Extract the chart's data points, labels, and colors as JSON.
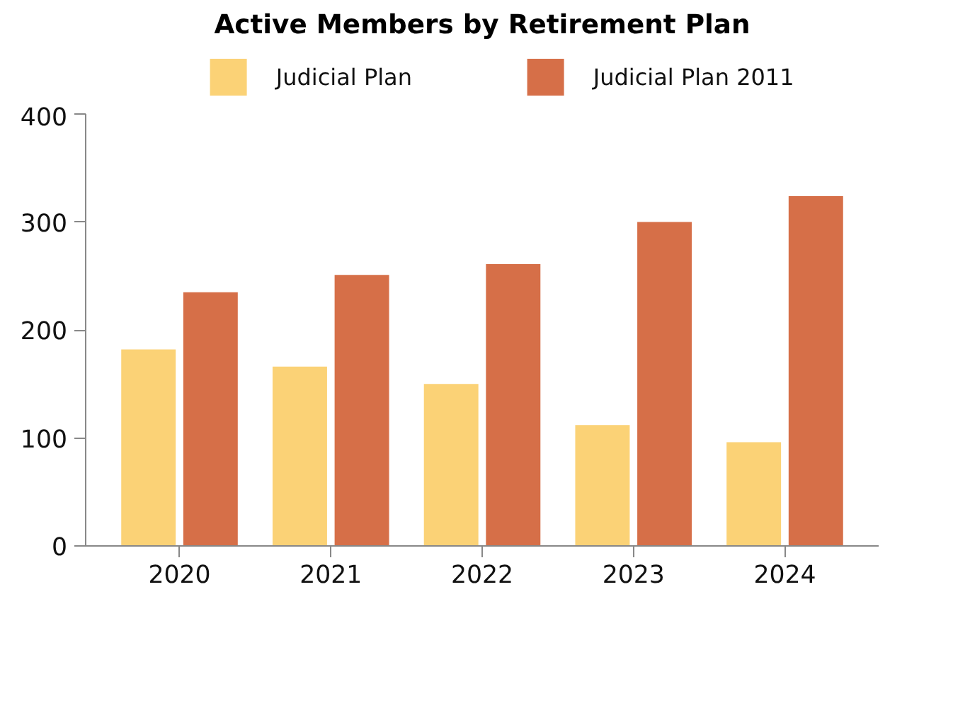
{
  "chart_data": {
    "type": "bar",
    "title": "Active Members by Retirement Plan",
    "categories": [
      "2020",
      "2021",
      "2022",
      "2023",
      "2024"
    ],
    "series": [
      {
        "name": "Judicial Plan",
        "color": "#fbd276",
        "values": [
          182,
          166,
          150,
          112,
          96
        ]
      },
      {
        "name": "Judicial Plan 2011",
        "color": "#d66f48",
        "values": [
          235,
          251,
          261,
          300,
          324
        ]
      }
    ],
    "ylim": [
      0,
      400
    ],
    "yticks": [
      0,
      100,
      200,
      300,
      400
    ],
    "grid": false,
    "legend": "top"
  }
}
